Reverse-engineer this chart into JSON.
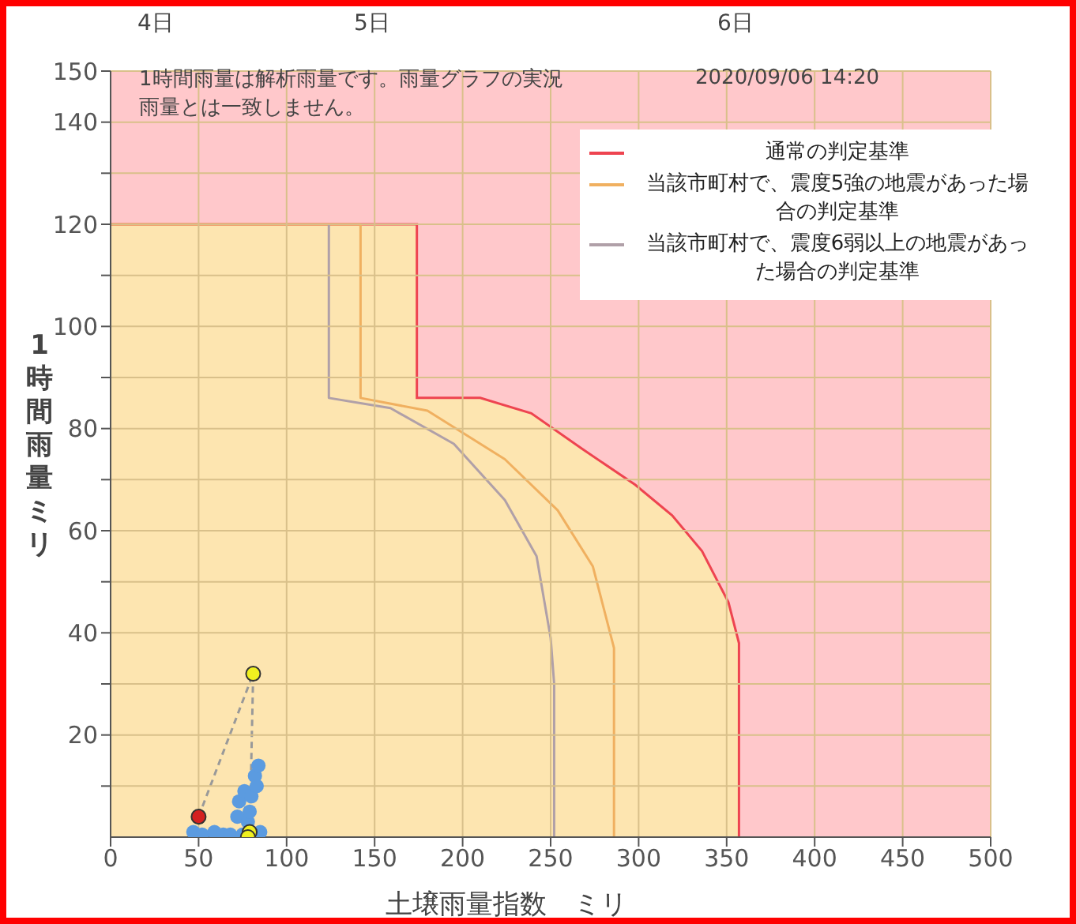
{
  "chart_data": {
    "type": "line",
    "xlabel": "土壌雨量指数　ミリ",
    "ylabel": "1時間雨量ミリ",
    "annotations": [
      "1時間雨量は解析雨量です。雨量グラフの実況雨量とは一致しません。",
      "2020/09/06 14:20",
      "4日",
      "5日",
      "6日"
    ],
    "xlim": [
      0,
      500
    ],
    "xticks": [
      0,
      50,
      100,
      150,
      200,
      250,
      300,
      350,
      400,
      450,
      500
    ],
    "ylim": [
      0,
      150
    ],
    "yticks": [
      {
        "value": 10,
        "label": null
      },
      20,
      {
        "value": 30,
        "label": null
      },
      40,
      {
        "value": 50,
        "label": null
      },
      60,
      {
        "value": 70,
        "label": null
      },
      80,
      {
        "value": 90,
        "label": null
      },
      100,
      {
        "value": 110,
        "label": null
      },
      120,
      {
        "value": 130,
        "label": null
      },
      140,
      150
    ],
    "grid": true,
    "legend": "top right",
    "bands": [
      {
        "axis": "y",
        "from": 0,
        "to": 150,
        "color": "#ffc8cb"
      }
    ],
    "series": [
      {
        "name": "通常の判定基準",
        "type": "area",
        "color": "#ee4450",
        "x": [
          0,
          174,
          174,
          210,
          239,
          268,
          298,
          319,
          336,
          351,
          357,
          357
        ],
        "values": [
          120,
          120,
          86,
          86,
          83,
          76,
          69,
          63,
          56,
          46,
          38,
          0
        ]
      },
      {
        "name": "当該市町村で、震度5強の地震があった場合の判定基準",
        "color": "#f0b060",
        "x": [
          0,
          142,
          142,
          180,
          224,
          254,
          274,
          286,
          286
        ],
        "values": [
          120,
          120,
          86,
          83.5,
          74,
          64,
          53,
          37,
          0
        ]
      },
      {
        "name": "当該市町村で、震度6弱以上の地震があった場合の判定基準",
        "color": "#b0a0a8",
        "x": [
          124,
          124,
          159,
          195,
          224,
          242,
          250,
          252,
          252
        ],
        "values": [
          120,
          86,
          84,
          77,
          66,
          55,
          39,
          30,
          0
        ]
      },
      {
        "line_style": "dashed",
        "color": "#999999",
        "x": [
          50,
          81,
          79
        ],
        "values": [
          4,
          32,
          0
        ]
      },
      {
        "type": "scatter",
        "color": "#5b9be0",
        "x": [
          47,
          52,
          59,
          64,
          68,
          72,
          73,
          75,
          76,
          78,
          79,
          80,
          82,
          84,
          85,
          83
        ],
        "values": [
          1,
          0.5,
          1,
          0.5,
          0.5,
          4,
          7,
          0.5,
          9,
          3,
          5,
          8,
          12,
          14,
          1,
          10
        ]
      },
      {
        "type": "scatter",
        "color": "#d42020",
        "x": [
          50
        ],
        "values": [
          4
        ]
      },
      {
        "type": "scatter",
        "color": "#f0f020",
        "x": [
          81,
          79,
          78
        ],
        "values": [
          32,
          1,
          0
        ]
      }
    ]
  }
}
